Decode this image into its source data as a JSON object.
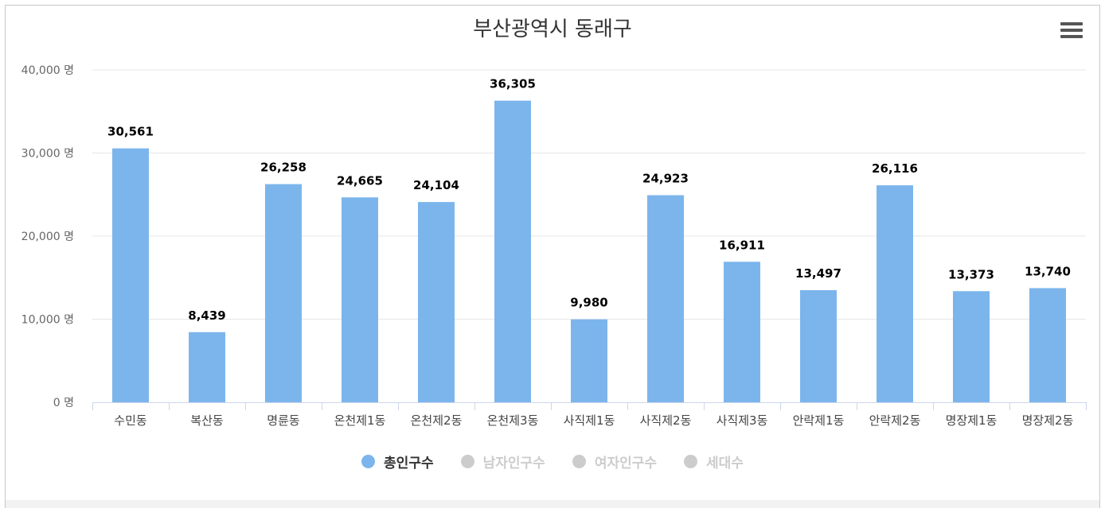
{
  "chart_data": {
    "type": "bar",
    "title": "부산광역시 동래구",
    "categories": [
      "수민동",
      "복산동",
      "명륜동",
      "온천제1동",
      "온천제2동",
      "온천제3동",
      "사직제1동",
      "사직제2동",
      "사직제3동",
      "안락제1동",
      "안락제2동",
      "명장제1동",
      "명장제2동"
    ],
    "series": [
      {
        "name": "총인구수",
        "values": [
          30561,
          8439,
          26258,
          24665,
          24104,
          36305,
          9980,
          24923,
          16911,
          13497,
          26116,
          13373,
          13740
        ],
        "data_labels": [
          "30,561",
          "8,439",
          "26,258",
          "24,665",
          "24,104",
          "36,305",
          "9,980",
          "24,923",
          "16,911",
          "13,497",
          "26,116",
          "13,373",
          "13,740"
        ],
        "color": "#7cb5ec"
      }
    ],
    "ylim": [
      0,
      40000
    ],
    "yticks": [
      0,
      10000,
      20000,
      30000,
      40000
    ],
    "ytick_labels": [
      "0 명",
      "10,000 명",
      "20,000 명",
      "30,000 명",
      "40,000 명"
    ],
    "grid": true,
    "legend_position": "bottom-center",
    "legend": [
      {
        "label": "총인구수",
        "active": true,
        "color": "#7cb5ec"
      },
      {
        "label": "남자인구수",
        "active": false,
        "color": "#cccccc"
      },
      {
        "label": "여자인구수",
        "active": false,
        "color": "#cccccc"
      },
      {
        "label": "세대수",
        "active": false,
        "color": "#cccccc"
      }
    ]
  },
  "toolbar": {
    "menu_icon": "hamburger-menu-icon"
  }
}
